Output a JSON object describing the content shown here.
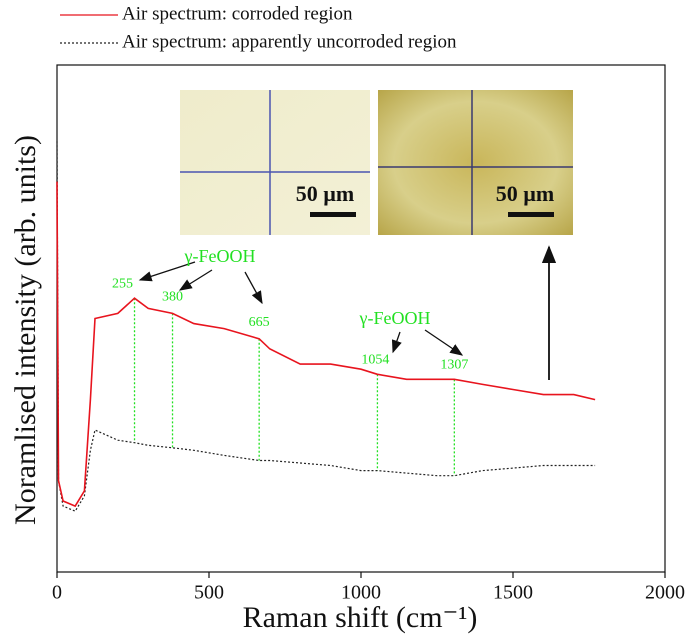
{
  "chart_data": {
    "type": "line",
    "xlabel": "Raman shift (cm⁻¹)",
    "ylabel": "Noramlised intensity (arb. units)",
    "x": [
      0,
      5,
      20,
      60,
      90,
      110,
      125,
      200,
      255,
      300,
      380,
      450,
      550,
      665,
      700,
      800,
      900,
      1000,
      1054,
      1150,
      1250,
      1307,
      1400,
      1500,
      1600,
      1700,
      1770
    ],
    "series": [
      {
        "name": "Air spectrum: corroded region",
        "color": "#e8141e",
        "dash": "solid",
        "values": [
          77,
          18,
          14,
          13,
          16,
          34,
          50,
          51,
          54,
          52,
          51,
          49,
          48,
          46,
          44,
          41,
          41,
          40,
          39,
          38,
          38,
          38,
          37,
          36,
          35,
          35,
          34
        ]
      },
      {
        "name": "Air spectrum: apparently uncorroded region",
        "color": "#222222",
        "dash": "dotted",
        "values": [
          85,
          18,
          13,
          12,
          15,
          24,
          28,
          26,
          25.5,
          25,
          24.5,
          24,
          23,
          22,
          22,
          21.5,
          21,
          20,
          20,
          19.5,
          19,
          19,
          20,
          20.5,
          21,
          21,
          21
        ]
      }
    ],
    "xlim": [
      0,
      2000
    ],
    "ylim": [
      0,
      100
    ],
    "xticks": [
      0,
      500,
      1000,
      1500,
      2000
    ],
    "peaks": [
      255,
      380,
      665,
      1054,
      1307
    ],
    "phase_labels": [
      "γ-FeOOH",
      "γ-FeOOH"
    ],
    "insets": [
      {
        "scale_label": "50 µm"
      },
      {
        "scale_label": "50 µm"
      }
    ]
  }
}
